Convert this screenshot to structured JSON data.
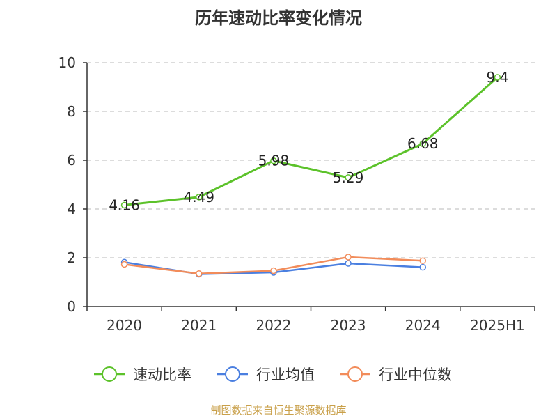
{
  "title": "历年速动比率变化情况",
  "source": "制图数据来自恒生聚源数据库",
  "chart_data": {
    "type": "line",
    "title": "历年速动比率变化情况",
    "categories": [
      "2020",
      "2021",
      "2022",
      "2023",
      "2024",
      "2025H1"
    ],
    "ylim": [
      0,
      10
    ],
    "yticks": [
      0,
      2,
      4,
      6,
      8,
      10
    ],
    "grid": true,
    "legend_position": "bottom",
    "series": [
      {
        "name": "速动比率",
        "color": "#5cc22a",
        "values": [
          4.16,
          4.49,
          5.98,
          5.29,
          6.68,
          9.4
        ],
        "labels": [
          "4.16",
          "4.49",
          "5.98",
          "5.29",
          "6.68",
          "9.4"
        ]
      },
      {
        "name": "行业均值",
        "color": "#4a7fe0",
        "values": [
          1.82,
          1.33,
          1.4,
          1.77,
          1.61,
          null
        ]
      },
      {
        "name": "行业中位数",
        "color": "#f28c5a",
        "values": [
          1.73,
          1.35,
          1.47,
          2.03,
          1.88,
          null
        ]
      }
    ]
  }
}
